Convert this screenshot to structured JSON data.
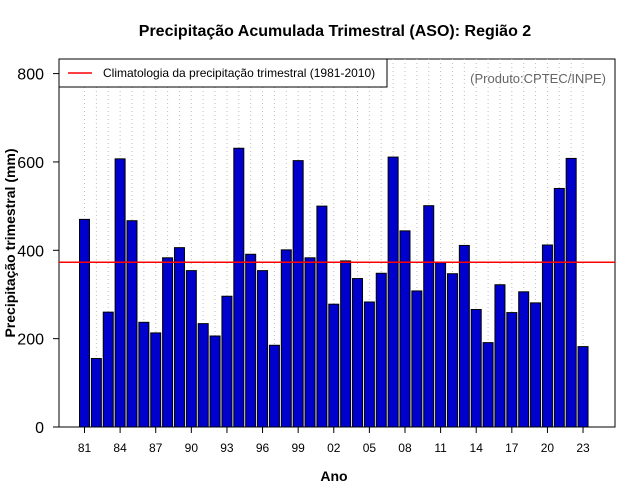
{
  "chart_data": {
    "type": "bar",
    "title": "Precipitação Acumulada Trimestral (ASO): Região 2",
    "xlabel": "Ano",
    "ylabel": "Precipitação trimestral (mm)",
    "ylim": [
      0,
      850
    ],
    "yticks": [
      0,
      200,
      400,
      600,
      800
    ],
    "grid": "vertical dotted",
    "legend_position": "top-left",
    "legend_label": "Climatologia da precipitação trimestral (1981-2010)",
    "credit": "(Produto:CPTEC/INPE)",
    "climatology": 373,
    "categories": [
      "81",
      "82",
      "83",
      "84",
      "85",
      "86",
      "87",
      "88",
      "89",
      "90",
      "91",
      "92",
      "93",
      "94",
      "95",
      "96",
      "97",
      "98",
      "99",
      "00",
      "01",
      "02",
      "03",
      "04",
      "05",
      "06",
      "07",
      "08",
      "09",
      "10",
      "11",
      "12",
      "13",
      "14",
      "15",
      "16",
      "17",
      "18",
      "19",
      "20",
      "21",
      "22",
      "23"
    ],
    "tick_labels": [
      "81",
      "84",
      "87",
      "90",
      "93",
      "96",
      "99",
      "02",
      "05",
      "08",
      "11",
      "14",
      "17",
      "20",
      "23"
    ],
    "values": [
      470,
      155,
      260,
      607,
      467,
      237,
      213,
      383,
      406,
      354,
      234,
      206,
      296,
      631,
      391,
      354,
      185,
      401,
      603,
      383,
      500,
      278,
      376,
      336,
      283,
      348,
      611,
      444,
      308,
      501,
      372,
      347,
      411,
      266,
      191,
      322,
      259,
      306,
      281,
      412,
      540,
      608,
      182
    ],
    "colors": {
      "bar": "#0000cc",
      "bar_edge": "#000000",
      "climatology_line": "#ff0000",
      "grid": "#bebebe"
    }
  }
}
